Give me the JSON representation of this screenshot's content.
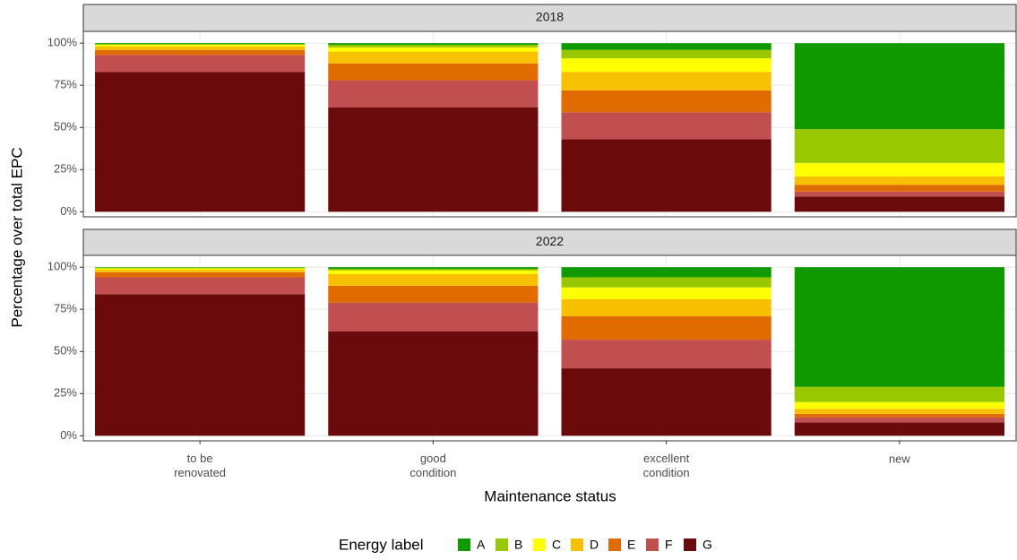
{
  "chart_data": {
    "type": "bar",
    "stacked": true,
    "xlabel": "Maintenance status",
    "ylabel": "Percentage over total EPC",
    "legend_title": "Energy label",
    "legend": "bottom",
    "grid": true,
    "categories": [
      "to be\nrenovated",
      "good\ncondition",
      "excellent\ncondition",
      "new"
    ],
    "ylim": [
      -3,
      107
    ],
    "yticks": [
      {
        "value": 0,
        "label": "0%"
      },
      {
        "value": 25,
        "label": "25%"
      },
      {
        "value": 50,
        "label": "50%"
      },
      {
        "value": 75,
        "label": "75%"
      },
      {
        "value": 100,
        "label": "100%"
      }
    ],
    "series": [
      {
        "name": "A",
        "color": "#109a00"
      },
      {
        "name": "B",
        "color": "#99c800"
      },
      {
        "name": "C",
        "color": "#ffff00"
      },
      {
        "name": "D",
        "color": "#f7c000"
      },
      {
        "name": "E",
        "color": "#e06c00"
      },
      {
        "name": "F",
        "color": "#c24f50"
      },
      {
        "name": "G",
        "color": "#6b0a0a"
      }
    ],
    "facets": [
      {
        "title": "2018",
        "series": [
          {
            "values": [
              0.5,
              1,
              4,
              51
            ]
          },
          {
            "values": [
              0.5,
              1.5,
              5,
              20
            ]
          },
          {
            "values": [
              1,
              2.5,
              8,
              8
            ]
          },
          {
            "values": [
              2,
              7,
              11,
              5
            ]
          },
          {
            "values": [
              3,
              10,
              13,
              4
            ]
          },
          {
            "values": [
              10,
              16,
              16,
              3
            ]
          },
          {
            "values": [
              83,
              62,
              43,
              9
            ]
          }
        ]
      },
      {
        "title": "2022",
        "series": [
          {
            "values": [
              0.3,
              1,
              6,
              71
            ]
          },
          {
            "values": [
              0.4,
              1,
              6,
              9
            ]
          },
          {
            "values": [
              0.8,
              2,
              7,
              4
            ]
          },
          {
            "values": [
              1.5,
              7,
              10,
              3
            ]
          },
          {
            "values": [
              3,
              10,
              14,
              2
            ]
          },
          {
            "values": [
              10,
              17,
              17,
              3
            ]
          },
          {
            "values": [
              84,
              62,
              40,
              8
            ]
          }
        ]
      }
    ]
  }
}
